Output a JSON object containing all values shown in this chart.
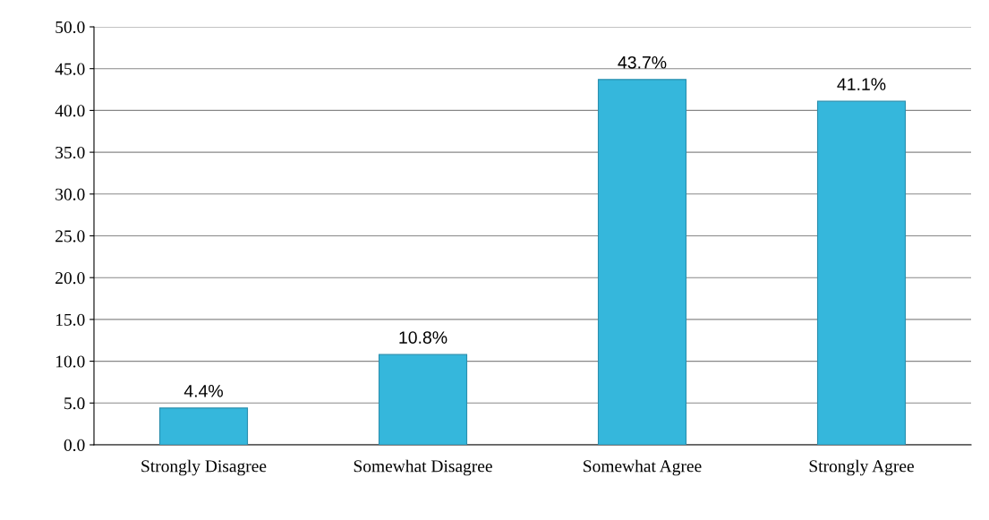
{
  "chart_data": {
    "type": "bar",
    "categories": [
      "Strongly Disagree",
      "Somewhat Disagree",
      "Somewhat Agree",
      "Strongly Agree"
    ],
    "values": [
      4.4,
      10.8,
      43.7,
      41.1
    ],
    "value_labels": [
      "4.4%",
      "10.8%",
      "43.7%",
      "41.1%"
    ],
    "color": "#35b7dc",
    "ylim": [
      0,
      50
    ],
    "yticks": [
      {
        "value": 0,
        "label": "0.0"
      },
      {
        "value": 5,
        "label": "5.0"
      },
      {
        "value": 10,
        "label": "10.0"
      },
      {
        "value": 15,
        "label": "15.0"
      },
      {
        "value": 20,
        "label": "20.0"
      },
      {
        "value": 25,
        "label": "25.0"
      },
      {
        "value": 30,
        "label": "30.0"
      },
      {
        "value": 35,
        "label": "35.0"
      },
      {
        "value": 40,
        "label": "40.0"
      },
      {
        "value": 45,
        "label": "45.0"
      },
      {
        "value": 50,
        "label": "50.0"
      }
    ],
    "grid": "y"
  }
}
